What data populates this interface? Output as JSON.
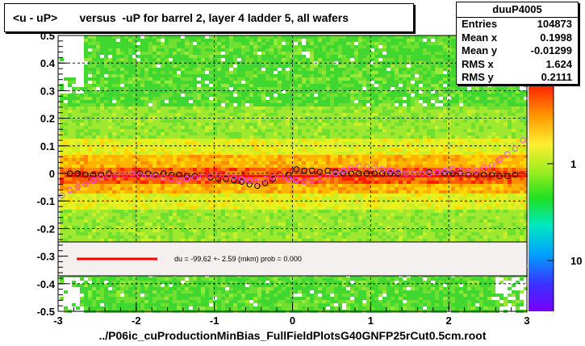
{
  "title": "<u - uP>       versus  -uP for barrel 2, layer 4 ladder 5, all wafers",
  "stats": {
    "name": "duuP4005",
    "rows": [
      {
        "label": "Entries",
        "value": "104873"
      },
      {
        "label": "Mean x",
        "value": "0.1998"
      },
      {
        "label": "Mean y",
        "value": "-0.01299"
      },
      {
        "label": "RMS x",
        "value": "1.624"
      },
      {
        "label": "RMS y",
        "value": "0.2111"
      }
    ]
  },
  "footer": "../P06ic_cuProductionMinBias_FullFieldPlotsG40GNFP25rCut0.5cm.root",
  "legend_text": "du =  -99.62 +-  2.59 (mkm) prob = 0.000",
  "colors": {
    "fit_line": "#ff0000",
    "profile_black": "#000000",
    "profile_magenta": "#ff44ff",
    "legend_fill": "#f4f0f0"
  },
  "chart_data": {
    "type": "heatmap",
    "title": "<u - uP>       versus  -uP for barrel 2, layer 4 ladder 5, all wafers",
    "xlim": [
      -3,
      3
    ],
    "ylim": [
      -0.5,
      0.5
    ],
    "x_ticks": [
      "-3",
      "-2",
      "-1",
      "0",
      "1",
      "2",
      "3"
    ],
    "y_ticks": [
      "-0.5",
      "-0.4",
      "-0.3",
      "-0.2",
      "-0.1",
      "0",
      "0.1",
      "0.2",
      "0.3",
      "0.4",
      "0.5"
    ],
    "colorbar_ticks": [
      "1",
      "10"
    ],
    "colorbar_scale": "log",
    "grid": true,
    "series": [
      {
        "marker": "open-circle-black",
        "x": [
          -2.85,
          -2.75,
          -2.65,
          -2.55,
          -2.45,
          -2.35,
          -2.25,
          -2.15,
          -2.05,
          -1.95,
          -1.85,
          -1.75,
          -1.65,
          -1.55,
          -1.45,
          -1.35,
          -1.25,
          -1.15,
          -1.05,
          -0.95,
          -0.85,
          -0.75,
          -0.65,
          -0.55,
          -0.45,
          -0.35,
          -0.25,
          -0.15,
          -0.05,
          0.05,
          0.15,
          0.25,
          0.35,
          0.45,
          0.55,
          0.65,
          0.75,
          0.85,
          0.95,
          1.05,
          1.15,
          1.25,
          1.35,
          1.45,
          1.55,
          1.65,
          1.75,
          1.85,
          1.95,
          2.05,
          2.15,
          2.25,
          2.35,
          2.45,
          2.55,
          2.65,
          2.75,
          2.85
        ],
        "y": [
          0.0,
          0.0,
          -0.005,
          -0.005,
          -0.005,
          0.0,
          -0.005,
          -0.005,
          0.0,
          0.0,
          0.0,
          -0.005,
          0.0,
          -0.005,
          -0.005,
          -0.01,
          -0.01,
          -0.01,
          -0.015,
          -0.02,
          -0.02,
          -0.025,
          -0.03,
          -0.04,
          -0.045,
          -0.035,
          -0.02,
          -0.01,
          -0.005,
          0.015,
          0.01,
          0.01,
          0.005,
          0.01,
          0.005,
          0.0,
          0.0,
          0.0,
          0.0,
          0.0,
          0.0,
          0.0,
          0.0,
          0.0,
          0.0,
          0.0,
          0.005,
          0.005,
          0.0,
          0.0,
          0.0,
          -0.005,
          -0.005,
          -0.005,
          -0.005,
          -0.01,
          -0.01,
          -0.005
        ]
      },
      {
        "marker": "open-circle-magenta",
        "x": [
          -2.95,
          -2.85,
          -2.75,
          -2.65,
          -2.55,
          -2.45,
          -2.35,
          -2.25,
          -2.15,
          -2.05,
          -1.95,
          -1.85,
          -1.75,
          -1.65,
          -1.55,
          -1.45,
          -1.35,
          -1.25,
          -1.15,
          -1.05,
          -0.95,
          -0.85,
          -0.75,
          -0.65,
          -0.55,
          -0.45,
          -0.35,
          -0.25,
          -0.15,
          -0.05,
          0.05,
          0.15,
          0.25,
          0.35,
          0.45,
          0.55,
          0.65,
          0.75,
          0.85,
          0.95,
          1.05,
          1.15,
          1.25,
          1.35,
          1.45,
          1.55,
          1.65,
          1.75,
          1.85,
          1.95,
          2.05,
          2.15,
          2.25,
          2.35,
          2.45,
          2.55,
          2.65,
          2.75,
          2.85,
          2.95
        ],
        "y": [
          -0.08,
          -0.06,
          -0.05,
          -0.04,
          -0.025,
          -0.015,
          -0.01,
          -0.005,
          -0.005,
          0.0,
          -0.005,
          -0.01,
          -0.01,
          -0.015,
          -0.02,
          -0.025,
          -0.02,
          -0.015,
          -0.01,
          -0.01,
          -0.005,
          -0.01,
          -0.015,
          -0.02,
          -0.025,
          -0.03,
          -0.02,
          -0.015,
          -0.01,
          -0.02,
          -0.025,
          -0.03,
          -0.025,
          -0.02,
          -0.01,
          0.0,
          0.01,
          0.02,
          0.025,
          0.025,
          0.02,
          0.015,
          0.01,
          0.005,
          0.0,
          0.0,
          0.0,
          0.0,
          0.005,
          0.01,
          0.015,
          0.01,
          0.005,
          0.01,
          0.02,
          0.03,
          0.05,
          0.07,
          0.09,
          0.12
        ]
      }
    ],
    "fit": {
      "x_start": -2.9,
      "x_end": 2.95,
      "y_start": -0.01,
      "y_end": -0.01
    }
  }
}
